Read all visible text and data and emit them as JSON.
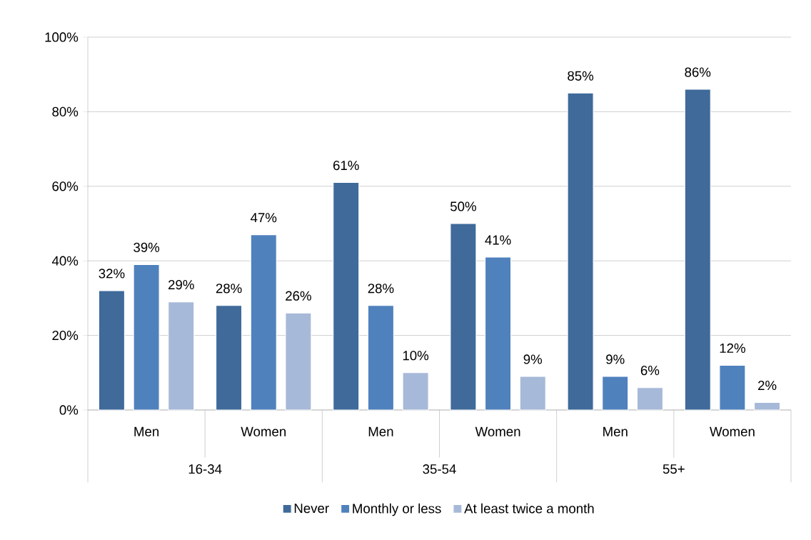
{
  "chart_data": {
    "type": "bar",
    "categories": [
      "Men",
      "Women",
      "Men",
      "Women",
      "Men",
      "Women"
    ],
    "annotations": [
      "16-34",
      "35-54",
      "55+"
    ],
    "series": [
      {
        "name": "Never",
        "color": "#3f6a9a",
        "values": [
          32,
          28,
          61,
          50,
          85,
          86
        ],
        "value_labels": [
          "32%",
          "28%",
          "61%",
          "50%",
          "85%",
          "86%"
        ]
      },
      {
        "name": "Monthly or less",
        "color": "#4f81bd",
        "values": [
          39,
          47,
          28,
          41,
          9,
          12
        ],
        "value_labels": [
          "39%",
          "47%",
          "28%",
          "41%",
          "9%",
          "12%"
        ]
      },
      {
        "name": "At least twice a month",
        "color": "#a7b9d8",
        "values": [
          29,
          26,
          10,
          9,
          6,
          2
        ],
        "value_labels": [
          "29%",
          "26%",
          "10%",
          "9%",
          "6%",
          "2%"
        ]
      }
    ],
    "ylim": [
      0,
      100
    ],
    "yticks": [
      {
        "value": 0,
        "label": "0%"
      },
      {
        "value": 20,
        "label": "20%"
      },
      {
        "value": 40,
        "label": "40%"
      },
      {
        "value": 60,
        "label": "60%"
      },
      {
        "value": 80,
        "label": "80%"
      },
      {
        "value": 100,
        "label": "100%"
      }
    ],
    "grid": "y",
    "legend": "bottom"
  }
}
